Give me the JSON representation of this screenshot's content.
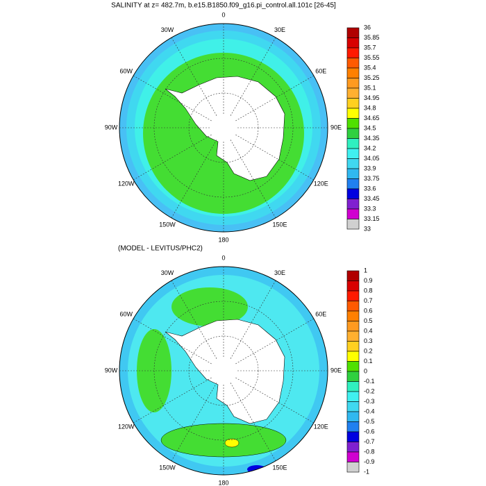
{
  "maps": [
    {
      "title": "SALINITY at z= 482.7m, b.e15.B1850.f09_g16.pi_control.all.101c [26-45]",
      "lon_labels": [
        "0",
        "30E",
        "60E",
        "90E",
        "120E",
        "150E",
        "180",
        "150W",
        "120W",
        "90W",
        "60W",
        "30W"
      ],
      "colorbar": {
        "labels": [
          36,
          35.85,
          35.7,
          35.55,
          35.4,
          35.25,
          35.1,
          34.95,
          34.8,
          34.65,
          34.5,
          34.35,
          34.2,
          34.05,
          33.9,
          33.75,
          33.6,
          33.45,
          33.3,
          33.15,
          33
        ],
        "colors": [
          "#b00000",
          "#d80000",
          "#ff1a00",
          "#ff5a00",
          "#ff8000",
          "#ff9a20",
          "#ffb030",
          "#ffd020",
          "#ffff00",
          "#50e000",
          "#30d040",
          "#30f0c0",
          "#40f0f0",
          "#40d8f0",
          "#30b8f0",
          "#2080f0",
          "#0000e0",
          "#8020d0",
          "#d000d0",
          "#d0d0d0"
        ]
      }
    },
    {
      "title": "(MODEL - LEVITUS/PHC2)",
      "lon_labels": [
        "0",
        "30E",
        "60E",
        "90E",
        "120E",
        "150E",
        "180",
        "150W",
        "120W",
        "90W",
        "60W",
        "30W"
      ],
      "colorbar": {
        "labels": [
          1,
          0.9,
          0.8,
          0.7,
          0.6,
          0.5,
          0.4,
          0.3,
          0.2,
          0.1,
          0,
          -0.1,
          -0.2,
          -0.3,
          -0.4,
          -0.5,
          -0.6,
          -0.7,
          -0.8,
          -0.9,
          -1
        ],
        "colors": [
          "#b00000",
          "#d80000",
          "#ff1a00",
          "#ff5a00",
          "#ff8000",
          "#ff9a20",
          "#ffb030",
          "#ffd020",
          "#ffff00",
          "#50e000",
          "#30d040",
          "#30f0c0",
          "#40f0f0",
          "#40d8f0",
          "#30b8f0",
          "#2080f0",
          "#0000e0",
          "#8020d0",
          "#d000d0",
          "#d0d0d0"
        ]
      }
    }
  ]
}
